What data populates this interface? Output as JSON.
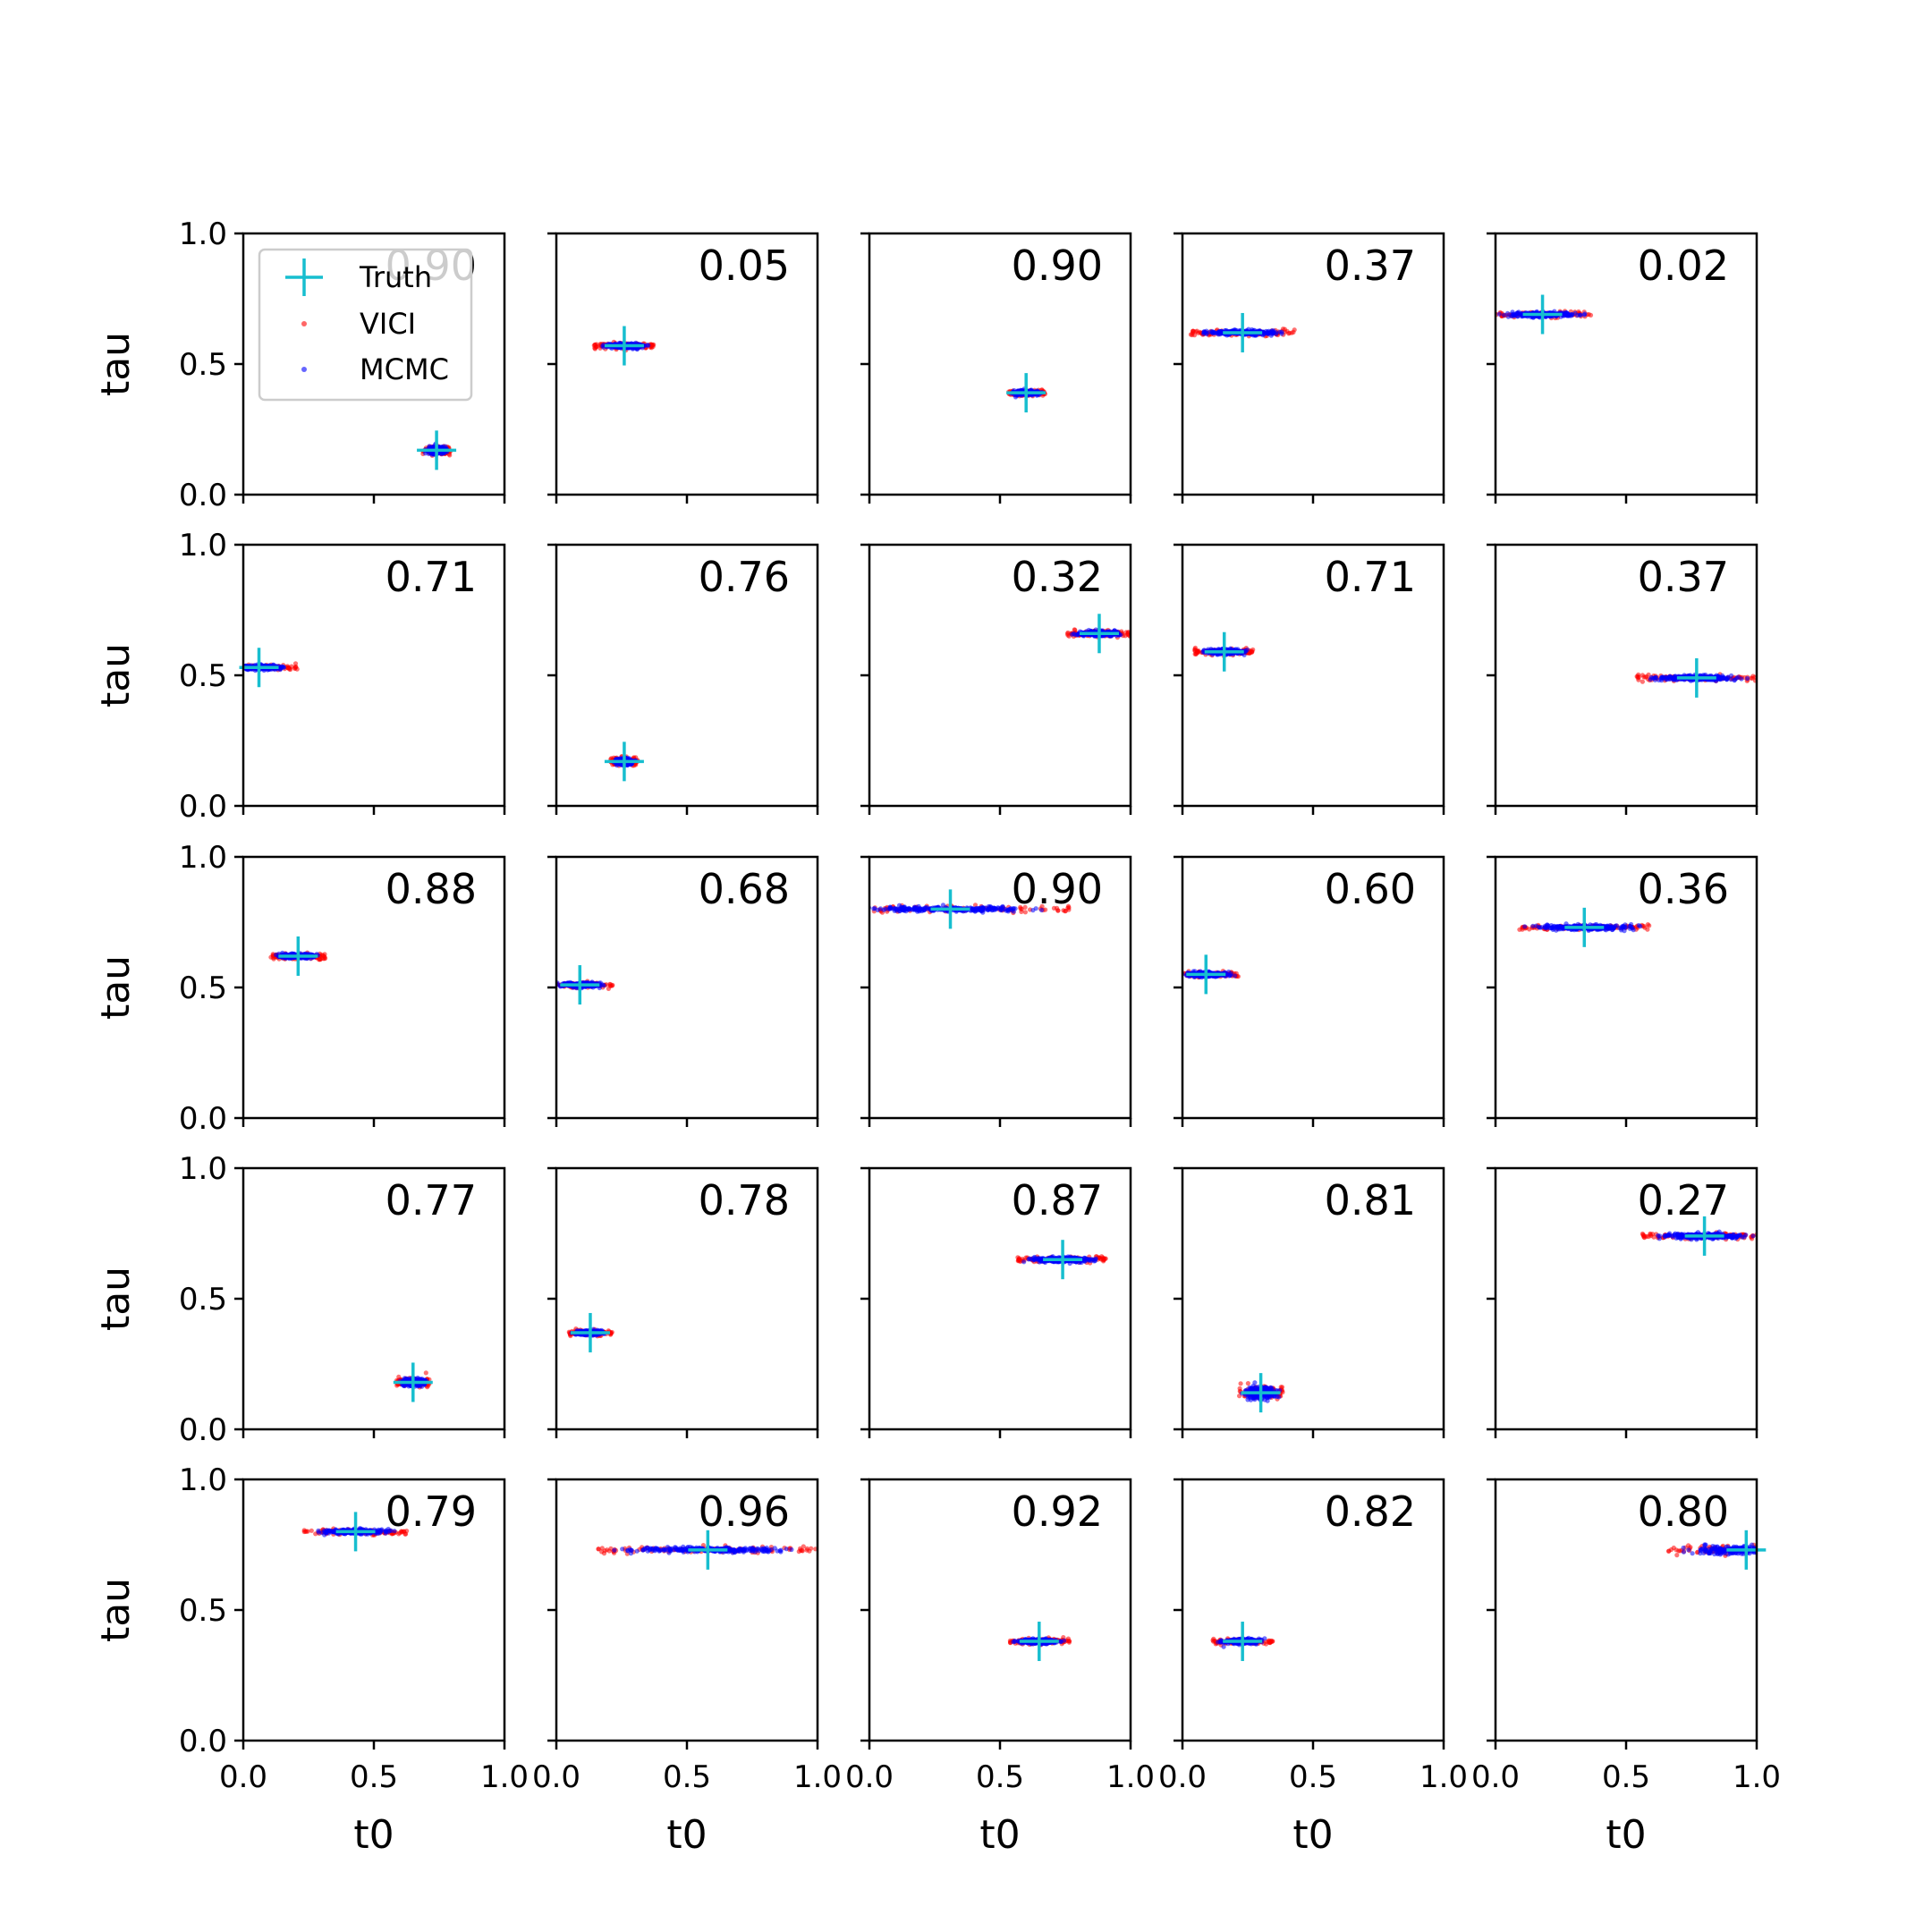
{
  "chart_data": {
    "type": "scatter",
    "layout": "5x5 grid of panels",
    "xlabel": "t0",
    "ylabel": "tau",
    "xlim": [
      0,
      1
    ],
    "ylim": [
      0,
      1
    ],
    "xticks": [
      "0.0",
      "0.5",
      "1.0"
    ],
    "yticks": [
      "0.0",
      "0.5",
      "1.0"
    ],
    "legend": {
      "placement": "upper-left of first panel",
      "entries": [
        {
          "label": "Truth",
          "marker": "plus",
          "color": "#17becf"
        },
        {
          "label": "VICI",
          "marker": "dot",
          "color": "#ff0000"
        },
        {
          "label": "MCMC",
          "marker": "dot",
          "color": "#0000ff"
        }
      ]
    },
    "colors": {
      "truth": "#17becf",
      "vici": "#ff0000",
      "mcmc": "#0000ff"
    },
    "panels": [
      {
        "value": "0.90",
        "truth": [
          0.74,
          0.17
        ],
        "spread": [
          0.05,
          0.012
        ]
      },
      {
        "value": "0.05",
        "truth": [
          0.26,
          0.57
        ],
        "spread": [
          0.11,
          0.008
        ]
      },
      {
        "value": "0.90",
        "truth": [
          0.6,
          0.39
        ],
        "spread": [
          0.07,
          0.008
        ]
      },
      {
        "value": "0.37",
        "truth": [
          0.23,
          0.62
        ],
        "spread": [
          0.19,
          0.008
        ]
      },
      {
        "value": "0.02",
        "truth": [
          0.18,
          0.69
        ],
        "spread": [
          0.18,
          0.008
        ]
      },
      {
        "value": "0.71",
        "truth": [
          0.06,
          0.53
        ],
        "spread": [
          0.14,
          0.008
        ]
      },
      {
        "value": "0.76",
        "truth": [
          0.26,
          0.17
        ],
        "spread": [
          0.05,
          0.012
        ]
      },
      {
        "value": "0.32",
        "truth": [
          0.88,
          0.66
        ],
        "spread": [
          0.12,
          0.008
        ]
      },
      {
        "value": "0.71",
        "truth": [
          0.16,
          0.59
        ],
        "spread": [
          0.11,
          0.008
        ]
      },
      {
        "value": "0.37",
        "truth": [
          0.77,
          0.49
        ],
        "spread": [
          0.22,
          0.008
        ]
      },
      {
        "value": "0.88",
        "truth": [
          0.21,
          0.62
        ],
        "spread": [
          0.1,
          0.008
        ]
      },
      {
        "value": "0.68",
        "truth": [
          0.09,
          0.51
        ],
        "spread": [
          0.12,
          0.008
        ]
      },
      {
        "value": "0.90",
        "truth": [
          0.31,
          0.8
        ],
        "spread": [
          0.44,
          0.008
        ]
      },
      {
        "value": "0.60",
        "truth": [
          0.09,
          0.55
        ],
        "spread": [
          0.12,
          0.008
        ]
      },
      {
        "value": "0.36",
        "truth": [
          0.34,
          0.73
        ],
        "spread": [
          0.24,
          0.008
        ]
      },
      {
        "value": "0.77",
        "truth": [
          0.65,
          0.18
        ],
        "spread": [
          0.06,
          0.012
        ]
      },
      {
        "value": "0.78",
        "truth": [
          0.13,
          0.37
        ],
        "spread": [
          0.08,
          0.008
        ]
      },
      {
        "value": "0.87",
        "truth": [
          0.74,
          0.65
        ],
        "spread": [
          0.17,
          0.008
        ]
      },
      {
        "value": "0.81",
        "truth": [
          0.3,
          0.14
        ],
        "spread": [
          0.08,
          0.02
        ]
      },
      {
        "value": "0.27",
        "truth": [
          0.8,
          0.74
        ],
        "spread": [
          0.23,
          0.008
        ]
      },
      {
        "value": "0.79",
        "truth": [
          0.43,
          0.8
        ],
        "spread": [
          0.19,
          0.008
        ]
      },
      {
        "value": "0.96",
        "truth": [
          0.58,
          0.73
        ],
        "spread": [
          0.4,
          0.008
        ]
      },
      {
        "value": "0.92",
        "truth": [
          0.65,
          0.38
        ],
        "spread": [
          0.11,
          0.008
        ]
      },
      {
        "value": "0.82",
        "truth": [
          0.23,
          0.38
        ],
        "spread": [
          0.11,
          0.008
        ]
      },
      {
        "value": "0.80",
        "truth": [
          0.96,
          0.73
        ],
        "spread": [
          0.3,
          0.015
        ]
      }
    ]
  }
}
